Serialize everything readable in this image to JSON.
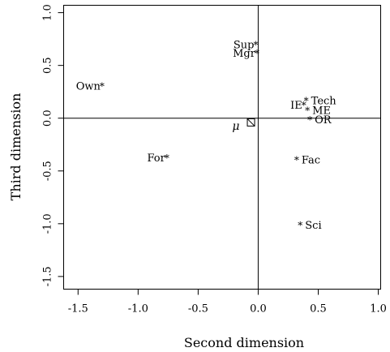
{
  "chart_data": {
    "type": "scatter",
    "xlabel": "Second dimension",
    "ylabel": "Third dimension",
    "xlim": [
      -1.62,
      1.02
    ],
    "ylim": [
      -1.62,
      1.07
    ],
    "xticks": [
      -1.5,
      -1.0,
      -0.5,
      0.0,
      0.5,
      1.0
    ],
    "xtick_labels": [
      "-1.5",
      "-1.0",
      "-0.5",
      "0.0",
      "0.5",
      "1.0"
    ],
    "yticks": [
      -1.5,
      -1.0,
      -0.5,
      0.0,
      0.5,
      1.0
    ],
    "ytick_labels": [
      "-1.5",
      "-1.0",
      "-0.5",
      "0.0",
      "0.5",
      "1.0"
    ],
    "reference_lines": {
      "x": 0.0,
      "y": 0.0
    },
    "grid": false,
    "points": [
      {
        "label": "Sup",
        "x": -0.02,
        "y": 0.7,
        "label_side": "left"
      },
      {
        "label": "Mgr",
        "x": -0.01,
        "y": 0.62,
        "label_side": "left"
      },
      {
        "label": "Own",
        "x": -1.3,
        "y": 0.31,
        "label_side": "left"
      },
      {
        "label": "IE",
        "x": 0.38,
        "y": 0.13,
        "label_side": "left"
      },
      {
        "label": "Tech",
        "x": 0.4,
        "y": 0.17,
        "label_side": "right"
      },
      {
        "label": "ME",
        "x": 0.41,
        "y": 0.08,
        "label_side": "right"
      },
      {
        "label": "OR",
        "x": 0.43,
        "y": -0.01,
        "label_side": "right"
      },
      {
        "label": "For",
        "x": -0.76,
        "y": -0.37,
        "label_side": "left"
      },
      {
        "label": "Fac",
        "x": 0.32,
        "y": -0.39,
        "label_side": "right"
      },
      {
        "label": "Sci",
        "x": 0.35,
        "y": -1.01,
        "label_side": "right"
      }
    ],
    "centroid": {
      "label": "μ",
      "x": -0.06,
      "y": -0.04
    }
  }
}
